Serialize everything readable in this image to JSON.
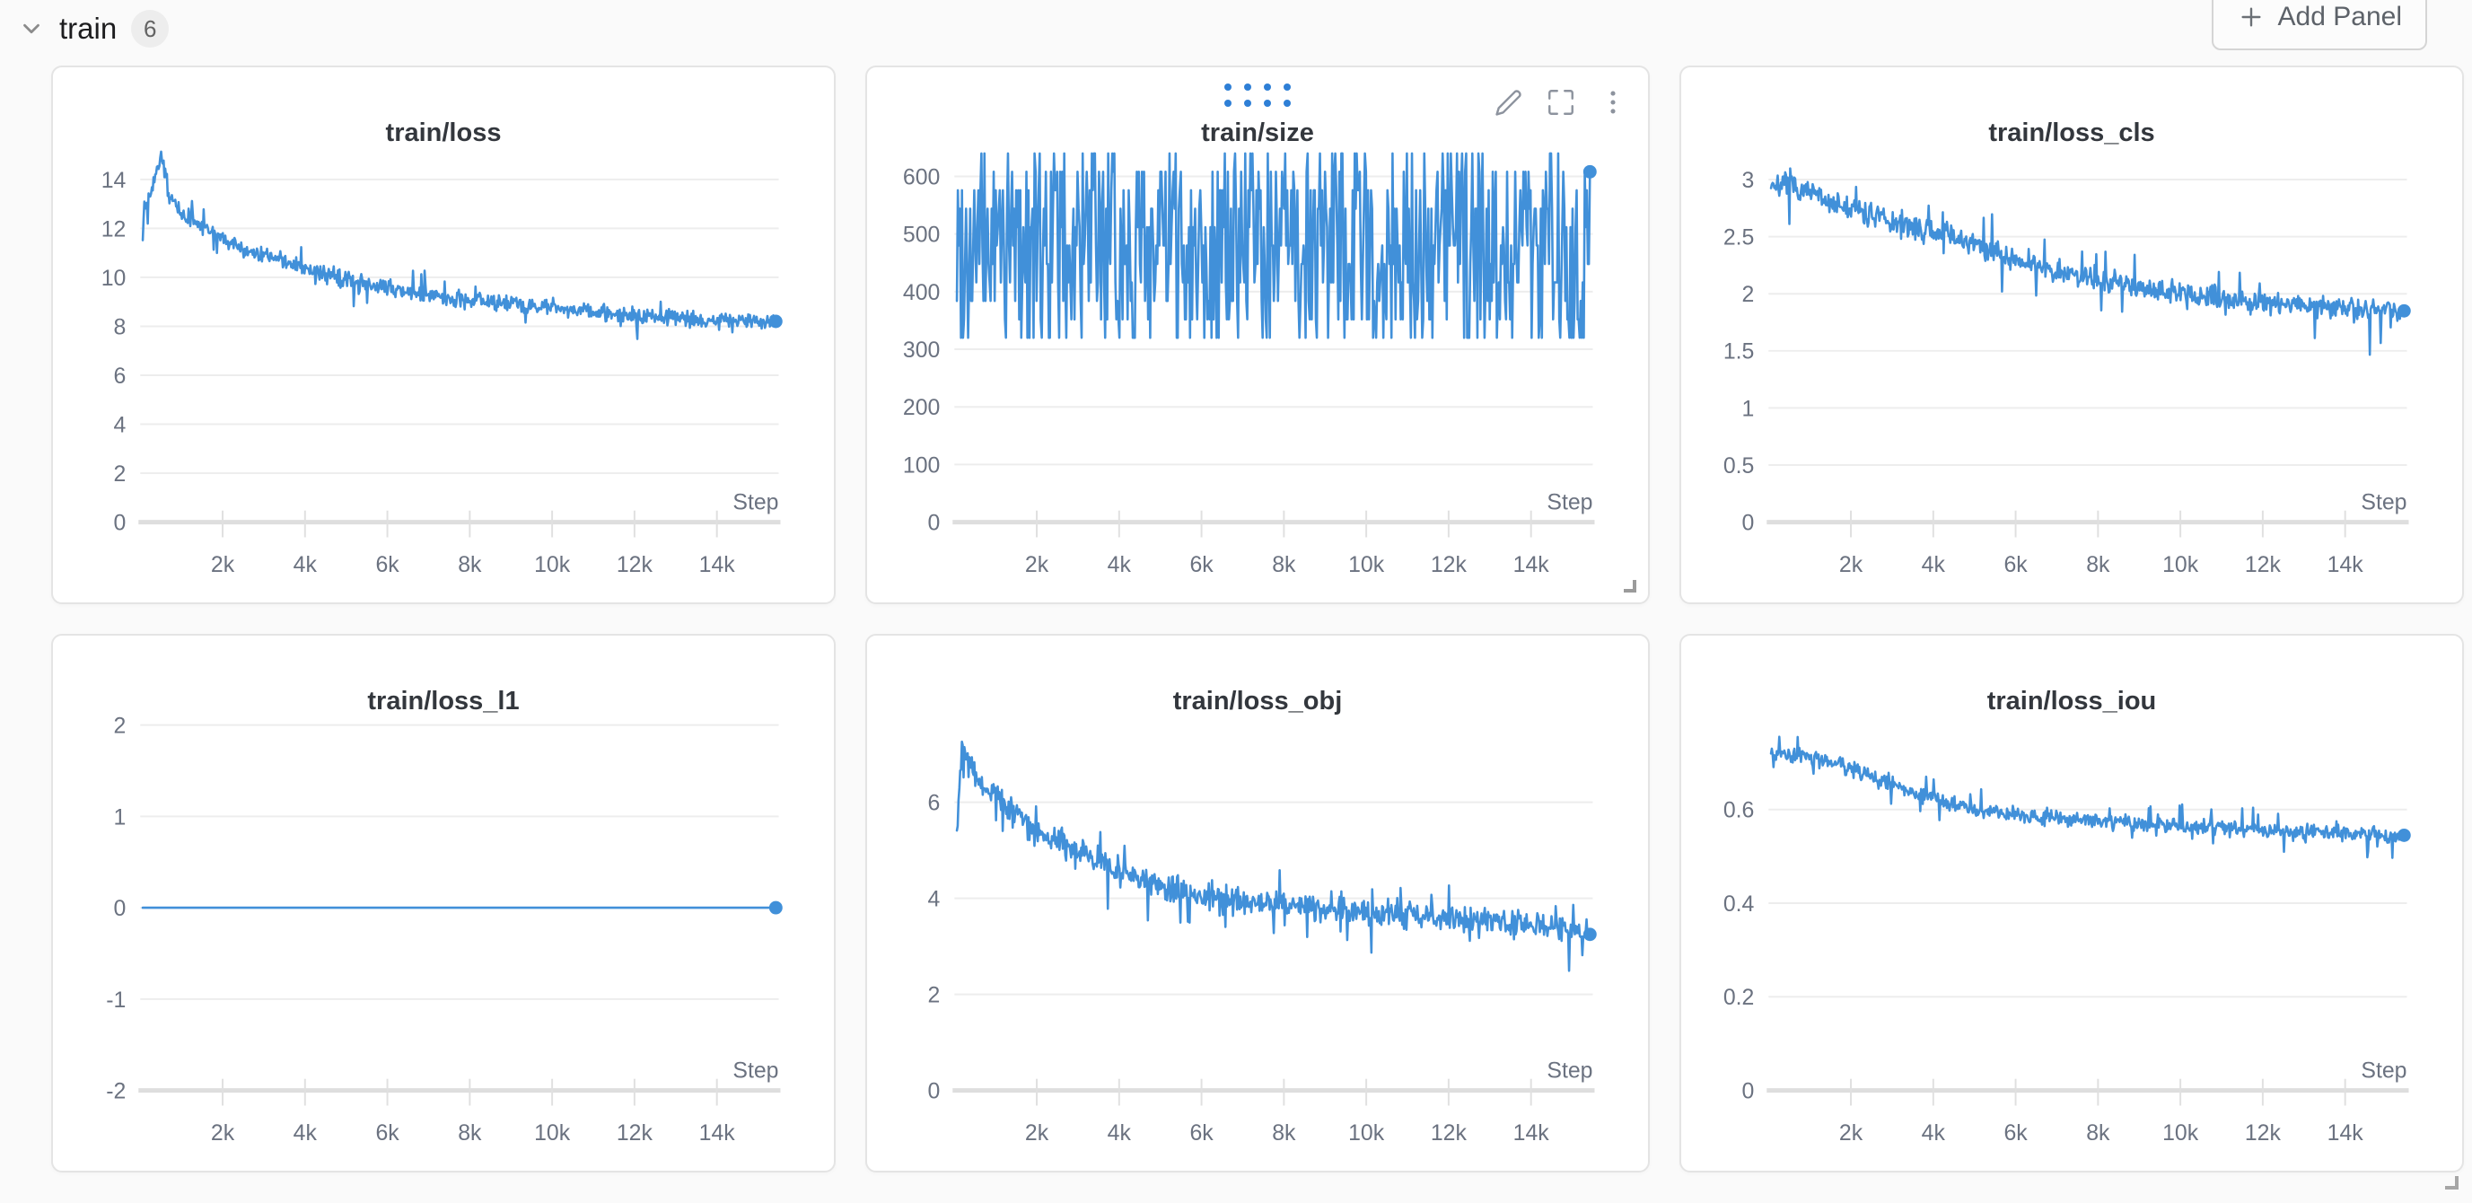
{
  "section": {
    "title": "train",
    "panel_count": "6",
    "add_panel_label": "Add Panel"
  },
  "ui": {
    "hover_panel_index": 1,
    "line_color": "#4190d9",
    "drag_dot_color": "#2e7fd6",
    "grid_color": "#ededed",
    "axis_color": "#dedede",
    "tick_label_color": "#6b7280",
    "panel_bg": "#ffffff",
    "page_bg": "#fafafa"
  },
  "chart_data": [
    {
      "type": "line",
      "title": "train/loss",
      "x_axis_label": "Step",
      "x_domain": [
        0,
        15500
      ],
      "x_data_range": [
        60,
        15430
      ],
      "x_ticks": [
        {
          "v": 2000,
          "label": "2k"
        },
        {
          "v": 4000,
          "label": "4k"
        },
        {
          "v": 6000,
          "label": "6k"
        },
        {
          "v": 8000,
          "label": "8k"
        },
        {
          "v": 10000,
          "label": "10k"
        },
        {
          "v": 12000,
          "label": "12k"
        },
        {
          "v": 14000,
          "label": "14k"
        }
      ],
      "y_domain": [
        0,
        15.3
      ],
      "y_ticks": [
        {
          "v": 14,
          "label": "14"
        },
        {
          "v": 12,
          "label": "12"
        },
        {
          "v": 10,
          "label": "10"
        },
        {
          "v": 8,
          "label": "8"
        },
        {
          "v": 6,
          "label": "6"
        },
        {
          "v": 4,
          "label": "4"
        },
        {
          "v": 2,
          "label": "2"
        },
        {
          "v": 0,
          "label": "0"
        }
      ],
      "trend": [
        [
          60,
          12.6
        ],
        [
          200,
          13.4
        ],
        [
          420,
          14.4
        ],
        [
          520,
          15.0
        ],
        [
          700,
          13.3
        ],
        [
          1000,
          12.6
        ],
        [
          1500,
          12.1
        ],
        [
          2000,
          11.6
        ],
        [
          2600,
          11.1
        ],
        [
          3200,
          10.8
        ],
        [
          4000,
          10.4
        ],
        [
          4800,
          10.0
        ],
        [
          5600,
          9.7
        ],
        [
          6400,
          9.45
        ],
        [
          7200,
          9.25
        ],
        [
          8000,
          9.1
        ],
        [
          9000,
          8.9
        ],
        [
          10000,
          8.75
        ],
        [
          11000,
          8.6
        ],
        [
          12000,
          8.45
        ],
        [
          13000,
          8.35
        ],
        [
          14000,
          8.25
        ],
        [
          15430,
          8.2
        ]
      ],
      "noise": {
        "mode": "jitter",
        "amp": 0.33,
        "spike_prob": 0.06,
        "spike_mult": 6
      },
      "n_points": 760,
      "end_value": 8.2,
      "seed": 13
    },
    {
      "type": "line",
      "title": "train/size",
      "x_axis_label": "Step",
      "x_domain": [
        0,
        15500
      ],
      "x_data_range": [
        60,
        15430
      ],
      "x_ticks": [
        {
          "v": 2000,
          "label": "2k"
        },
        {
          "v": 4000,
          "label": "4k"
        },
        {
          "v": 6000,
          "label": "6k"
        },
        {
          "v": 8000,
          "label": "8k"
        },
        {
          "v": 10000,
          "label": "10k"
        },
        {
          "v": 12000,
          "label": "12k"
        },
        {
          "v": 14000,
          "label": "14k"
        }
      ],
      "y_domain": [
        0,
        650
      ],
      "y_ticks": [
        {
          "v": 600,
          "label": "600"
        },
        {
          "v": 500,
          "label": "500"
        },
        {
          "v": 400,
          "label": "400"
        },
        {
          "v": 300,
          "label": "300"
        },
        {
          "v": 200,
          "label": "200"
        },
        {
          "v": 100,
          "label": "100"
        },
        {
          "v": 0,
          "label": "0"
        }
      ],
      "trend": [
        [
          60,
          480
        ],
        [
          15430,
          480
        ]
      ],
      "noise": {
        "mode": "uniform",
        "min": 320,
        "step": 32,
        "levels": 11
      },
      "n_points": 620,
      "end_value": 608,
      "seed": 99
    },
    {
      "type": "line",
      "title": "train/loss_cls",
      "x_axis_label": "Step",
      "x_domain": [
        0,
        15500
      ],
      "x_data_range": [
        60,
        15430
      ],
      "x_ticks": [
        {
          "v": 2000,
          "label": "2k"
        },
        {
          "v": 4000,
          "label": "4k"
        },
        {
          "v": 6000,
          "label": "6k"
        },
        {
          "v": 8000,
          "label": "8k"
        },
        {
          "v": 10000,
          "label": "10k"
        },
        {
          "v": 12000,
          "label": "12k"
        },
        {
          "v": 14000,
          "label": "14k"
        }
      ],
      "y_domain": [
        0,
        3.28
      ],
      "y_ticks": [
        {
          "v": 3,
          "label": "3"
        },
        {
          "v": 2.5,
          "label": "2.5"
        },
        {
          "v": 2,
          "label": "2"
        },
        {
          "v": 1.5,
          "label": "1.5"
        },
        {
          "v": 1,
          "label": "1"
        },
        {
          "v": 0.5,
          "label": "0.5"
        },
        {
          "v": 0,
          "label": "0"
        }
      ],
      "trend": [
        [
          60,
          2.97
        ],
        [
          600,
          2.93
        ],
        [
          1200,
          2.85
        ],
        [
          2000,
          2.74
        ],
        [
          2800,
          2.66
        ],
        [
          3600,
          2.58
        ],
        [
          4400,
          2.5
        ],
        [
          5200,
          2.4
        ],
        [
          6000,
          2.3
        ],
        [
          6800,
          2.22
        ],
        [
          7600,
          2.15
        ],
        [
          8400,
          2.1
        ],
        [
          9200,
          2.05
        ],
        [
          10000,
          2.0
        ],
        [
          11000,
          1.96
        ],
        [
          12000,
          1.93
        ],
        [
          13000,
          1.9
        ],
        [
          14000,
          1.87
        ],
        [
          15430,
          1.85
        ]
      ],
      "noise": {
        "mode": "jitter",
        "amp": 0.1,
        "spike_prob": 0.06,
        "spike_mult": 6
      },
      "n_points": 760,
      "end_value": 1.85,
      "seed": 7
    },
    {
      "type": "line",
      "title": "train/loss_l1",
      "x_axis_label": "Step",
      "x_domain": [
        0,
        15500
      ],
      "x_data_range": [
        60,
        15430
      ],
      "x_ticks": [
        {
          "v": 2000,
          "label": "2k"
        },
        {
          "v": 4000,
          "label": "4k"
        },
        {
          "v": 6000,
          "label": "6k"
        },
        {
          "v": 8000,
          "label": "8k"
        },
        {
          "v": 10000,
          "label": "10k"
        },
        {
          "v": 12000,
          "label": "12k"
        },
        {
          "v": 14000,
          "label": "14k"
        }
      ],
      "y_domain": [
        -2,
        2.1
      ],
      "y_ticks": [
        {
          "v": 2,
          "label": "2"
        },
        {
          "v": 1,
          "label": "1"
        },
        {
          "v": 0,
          "label": "0"
        },
        {
          "v": -1,
          "label": "-1"
        },
        {
          "v": -2,
          "label": "-2"
        }
      ],
      "trend": [
        [
          60,
          0
        ],
        [
          15430,
          0
        ]
      ],
      "noise": {
        "mode": "jitter",
        "amp": 0,
        "spike_prob": 0,
        "spike_mult": 0
      },
      "n_points": 160,
      "end_value": 0,
      "seed": 1
    },
    {
      "type": "line",
      "title": "train/loss_obj",
      "x_axis_label": "Step",
      "x_domain": [
        0,
        15500
      ],
      "x_data_range": [
        60,
        15430
      ],
      "x_ticks": [
        {
          "v": 2000,
          "label": "2k"
        },
        {
          "v": 4000,
          "label": "4k"
        },
        {
          "v": 6000,
          "label": "6k"
        },
        {
          "v": 8000,
          "label": "8k"
        },
        {
          "v": 10000,
          "label": "10k"
        },
        {
          "v": 12000,
          "label": "12k"
        },
        {
          "v": 14000,
          "label": "14k"
        }
      ],
      "y_domain": [
        0,
        7.8
      ],
      "y_ticks": [
        {
          "v": 6,
          "label": "6"
        },
        {
          "v": 4,
          "label": "4"
        },
        {
          "v": 2,
          "label": "2"
        },
        {
          "v": 0,
          "label": "0"
        }
      ],
      "trend": [
        [
          60,
          5.3
        ],
        [
          180,
          7.4
        ],
        [
          320,
          6.9
        ],
        [
          500,
          6.5
        ],
        [
          800,
          6.3
        ],
        [
          1200,
          6.0
        ],
        [
          1700,
          5.6
        ],
        [
          2200,
          5.3
        ],
        [
          2800,
          5.05
        ],
        [
          3400,
          4.8
        ],
        [
          4000,
          4.55
        ],
        [
          4600,
          4.35
        ],
        [
          5200,
          4.2
        ],
        [
          6000,
          4.05
        ],
        [
          7000,
          3.95
        ],
        [
          8000,
          3.9
        ],
        [
          9000,
          3.8
        ],
        [
          10000,
          3.7
        ],
        [
          11000,
          3.65
        ],
        [
          12000,
          3.6
        ],
        [
          13000,
          3.5
        ],
        [
          14000,
          3.45
        ],
        [
          15430,
          3.3
        ]
      ],
      "noise": {
        "mode": "jitter",
        "amp": 0.28,
        "spike_prob": 0.07,
        "spike_mult": 6
      },
      "n_points": 760,
      "end_value": 3.25,
      "seed": 42
    },
    {
      "type": "line",
      "title": "train/loss_iou",
      "x_axis_label": "Step",
      "x_domain": [
        0,
        15500
      ],
      "x_data_range": [
        60,
        15430
      ],
      "x_ticks": [
        {
          "v": 2000,
          "label": "2k"
        },
        {
          "v": 4000,
          "label": "4k"
        },
        {
          "v": 6000,
          "label": "6k"
        },
        {
          "v": 8000,
          "label": "8k"
        },
        {
          "v": 10000,
          "label": "10k"
        },
        {
          "v": 12000,
          "label": "12k"
        },
        {
          "v": 14000,
          "label": "14k"
        }
      ],
      "y_domain": [
        0,
        0.8
      ],
      "y_ticks": [
        {
          "v": 0.6,
          "label": "0.6"
        },
        {
          "v": 0.4,
          "label": "0.4"
        },
        {
          "v": 0.2,
          "label": "0.2"
        },
        {
          "v": 0,
          "label": "0"
        }
      ],
      "trend": [
        [
          60,
          0.725
        ],
        [
          800,
          0.715
        ],
        [
          1600,
          0.7
        ],
        [
          2200,
          0.68
        ],
        [
          2800,
          0.662
        ],
        [
          3400,
          0.64
        ],
        [
          4000,
          0.622
        ],
        [
          4600,
          0.607
        ],
        [
          5200,
          0.597
        ],
        [
          6000,
          0.588
        ],
        [
          6800,
          0.582
        ],
        [
          7600,
          0.578
        ],
        [
          8400,
          0.574
        ],
        [
          9200,
          0.57
        ],
        [
          10000,
          0.565
        ],
        [
          11000,
          0.56
        ],
        [
          12000,
          0.556
        ],
        [
          13000,
          0.552
        ],
        [
          14000,
          0.549
        ],
        [
          15430,
          0.545
        ]
      ],
      "noise": {
        "mode": "jitter",
        "amp": 0.016,
        "spike_prob": 0.06,
        "spike_mult": 6
      },
      "n_points": 760,
      "end_value": 0.545,
      "seed": 77
    }
  ]
}
